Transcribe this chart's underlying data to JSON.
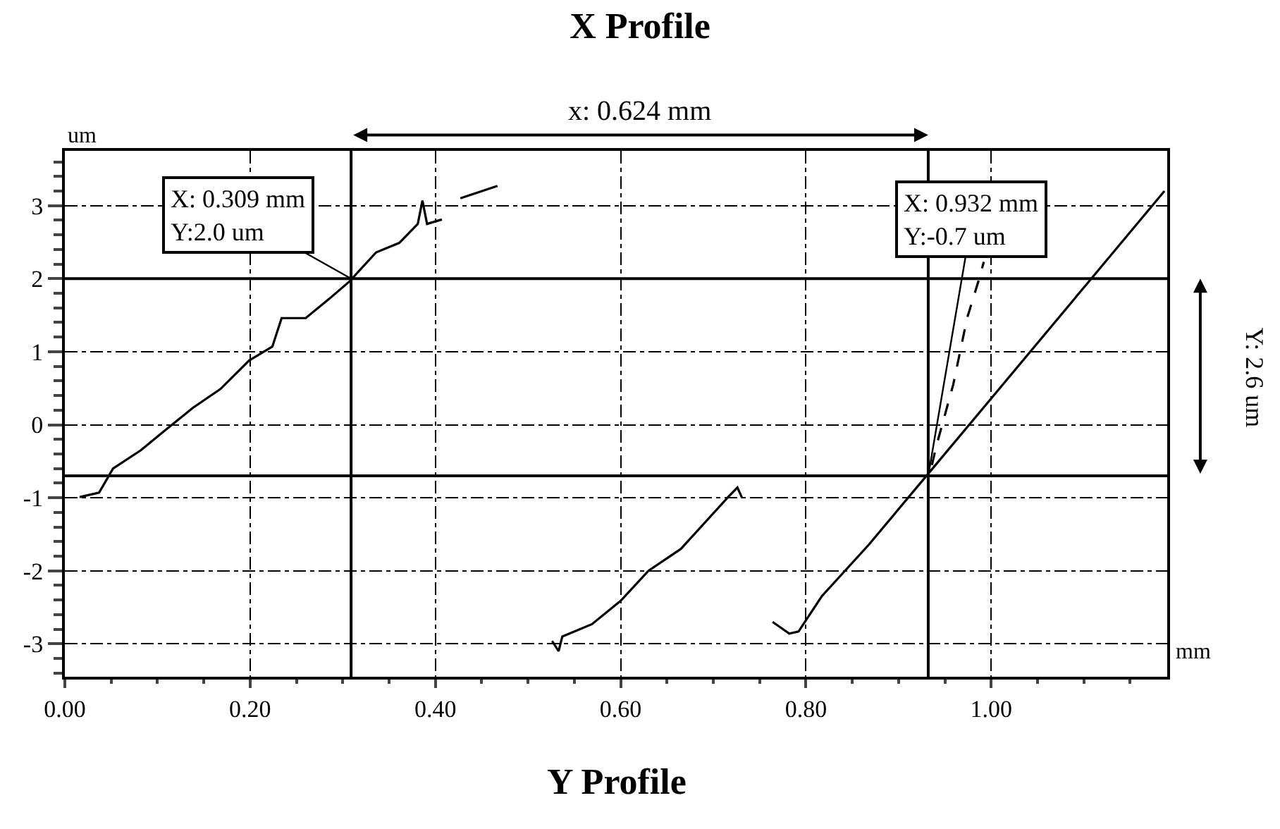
{
  "chart_data": {
    "type": "line",
    "title": "X Profile",
    "xlabel": "mm",
    "ylabel": "um",
    "xlim": [
      0,
      1.19
    ],
    "ylim": [
      -3.45,
      3.75
    ],
    "xticks": [
      {
        "value": 0,
        "label": "0.00"
      },
      {
        "value": 0.2,
        "label": "0.20"
      },
      {
        "value": 0.4,
        "label": "0.40"
      },
      {
        "value": 0.6,
        "label": "0.60"
      },
      {
        "value": 0.8,
        "label": "0.80"
      },
      {
        "value": 1.0,
        "label": "1.00"
      }
    ],
    "yticks": [
      -3,
      -2,
      -1,
      0,
      1,
      2,
      3
    ],
    "grid": true,
    "marker": "none",
    "series": [
      {
        "color": "#000000",
        "line_style": "solid",
        "x": [
          0.016,
          0.037,
          0.052,
          0.082,
          0.107,
          0.138,
          0.168,
          0.199,
          0.224,
          0.234,
          0.26,
          0.285,
          0.308,
          0.315,
          0.336,
          0.361,
          0.381,
          0.386,
          0.391,
          0.407,
          0.417,
          0.427,
          0.467
        ],
        "values": [
          -0.99,
          -0.93,
          -0.6,
          -0.35,
          -0.09,
          0.23,
          0.49,
          0.88,
          1.07,
          1.46,
          1.46,
          1.72,
          1.97,
          2.07,
          2.36,
          2.49,
          2.75,
          3.07,
          2.75,
          2.81,
          null,
          3.1,
          3.27
        ]
      },
      {
        "color": "#000000",
        "line_style": "solid",
        "x": [
          0.526,
          0.533,
          0.537,
          0.569,
          0.6,
          0.63,
          0.665,
          0.716,
          0.726,
          0.731
        ],
        "values": [
          -2.96,
          -3.1,
          -2.9,
          -2.73,
          -2.41,
          -2.0,
          -1.7,
          -0.99,
          -0.86,
          -1.0
        ]
      },
      {
        "color": "#000000",
        "line_style": "solid",
        "x": [
          0.764,
          0.782,
          0.792,
          0.817,
          0.868,
          0.934,
          1.0,
          1.106,
          1.187
        ],
        "values": [
          -2.7,
          -2.86,
          -2.83,
          -2.35,
          -1.64,
          -0.64,
          0.36,
          1.97,
          3.2
        ]
      },
      {
        "color": "#000000",
        "line_style": "dashed",
        "x": [
          0.936,
          0.941,
          0.959,
          0.974,
          0.987,
          0.992
        ],
        "values": [
          -0.55,
          -0.28,
          0.55,
          1.46,
          2.0,
          2.23
        ]
      }
    ],
    "ref_lines": [
      {
        "axis": "x",
        "value": 0.309,
        "color": "#000000"
      },
      {
        "axis": "x",
        "value": 0.932,
        "color": "#000000"
      },
      {
        "axis": "y",
        "value": 2.0,
        "color": "#000000"
      },
      {
        "axis": "y",
        "value": -0.7,
        "color": "#000000"
      }
    ],
    "annotations": [
      "x: 0.624 mm",
      "Y: 2.6 um",
      "Y Profile",
      {
        "text": "X: 0.309 mm\nY:2.0 um",
        "x": 0.309,
        "y": 2.0
      },
      {
        "text": "X: 0.932 mm\nY:-0.7 um",
        "x": 0.932,
        "y": -0.7
      }
    ]
  }
}
